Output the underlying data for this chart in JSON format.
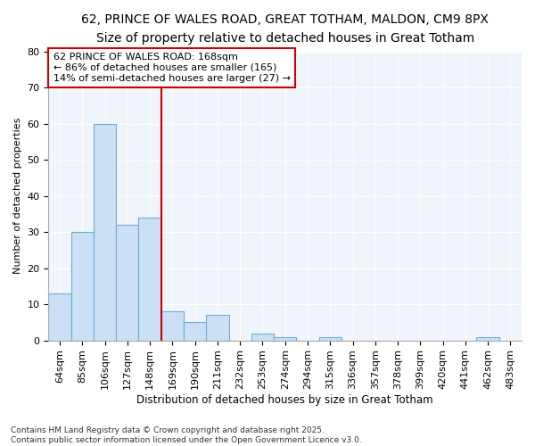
{
  "title1": "62, PRINCE OF WALES ROAD, GREAT TOTHAM, MALDON, CM9 8PX",
  "title2": "Size of property relative to detached houses in Great Totham",
  "xlabel": "Distribution of detached houses by size in Great Totham",
  "ylabel": "Number of detached properties",
  "categories": [
    "64sqm",
    "85sqm",
    "106sqm",
    "127sqm",
    "148sqm",
    "169sqm",
    "190sqm",
    "211sqm",
    "232sqm",
    "253sqm",
    "274sqm",
    "294sqm",
    "315sqm",
    "336sqm",
    "357sqm",
    "378sqm",
    "399sqm",
    "420sqm",
    "441sqm",
    "462sqm",
    "483sqm"
  ],
  "values": [
    13,
    30,
    60,
    32,
    34,
    8,
    5,
    7,
    0,
    2,
    1,
    0,
    1,
    0,
    0,
    0,
    0,
    0,
    0,
    1,
    0
  ],
  "bar_color": "#cce0f5",
  "bar_edge_color": "#6aaed6",
  "reference_line_color": "#cc0000",
  "reference_line_index": 5,
  "ylim": [
    0,
    80
  ],
  "yticks": [
    0,
    10,
    20,
    30,
    40,
    50,
    60,
    70,
    80
  ],
  "annotation_text": "62 PRINCE OF WALES ROAD: 168sqm\n← 86% of detached houses are smaller (165)\n14% of semi-detached houses are larger (27) →",
  "annotation_box_facecolor": "#ffffff",
  "annotation_box_edgecolor": "#cc0000",
  "plot_bg_color": "#f0f4fb",
  "fig_bg_color": "#ffffff",
  "grid_color": "#ffffff",
  "footnote": "Contains HM Land Registry data © Crown copyright and database right 2025.\nContains public sector information licensed under the Open Government Licence v3.0.",
  "title1_fontsize": 10,
  "title2_fontsize": 9,
  "xlabel_fontsize": 8.5,
  "ylabel_fontsize": 8,
  "tick_fontsize": 8,
  "annot_fontsize": 8,
  "footnote_fontsize": 6.5
}
